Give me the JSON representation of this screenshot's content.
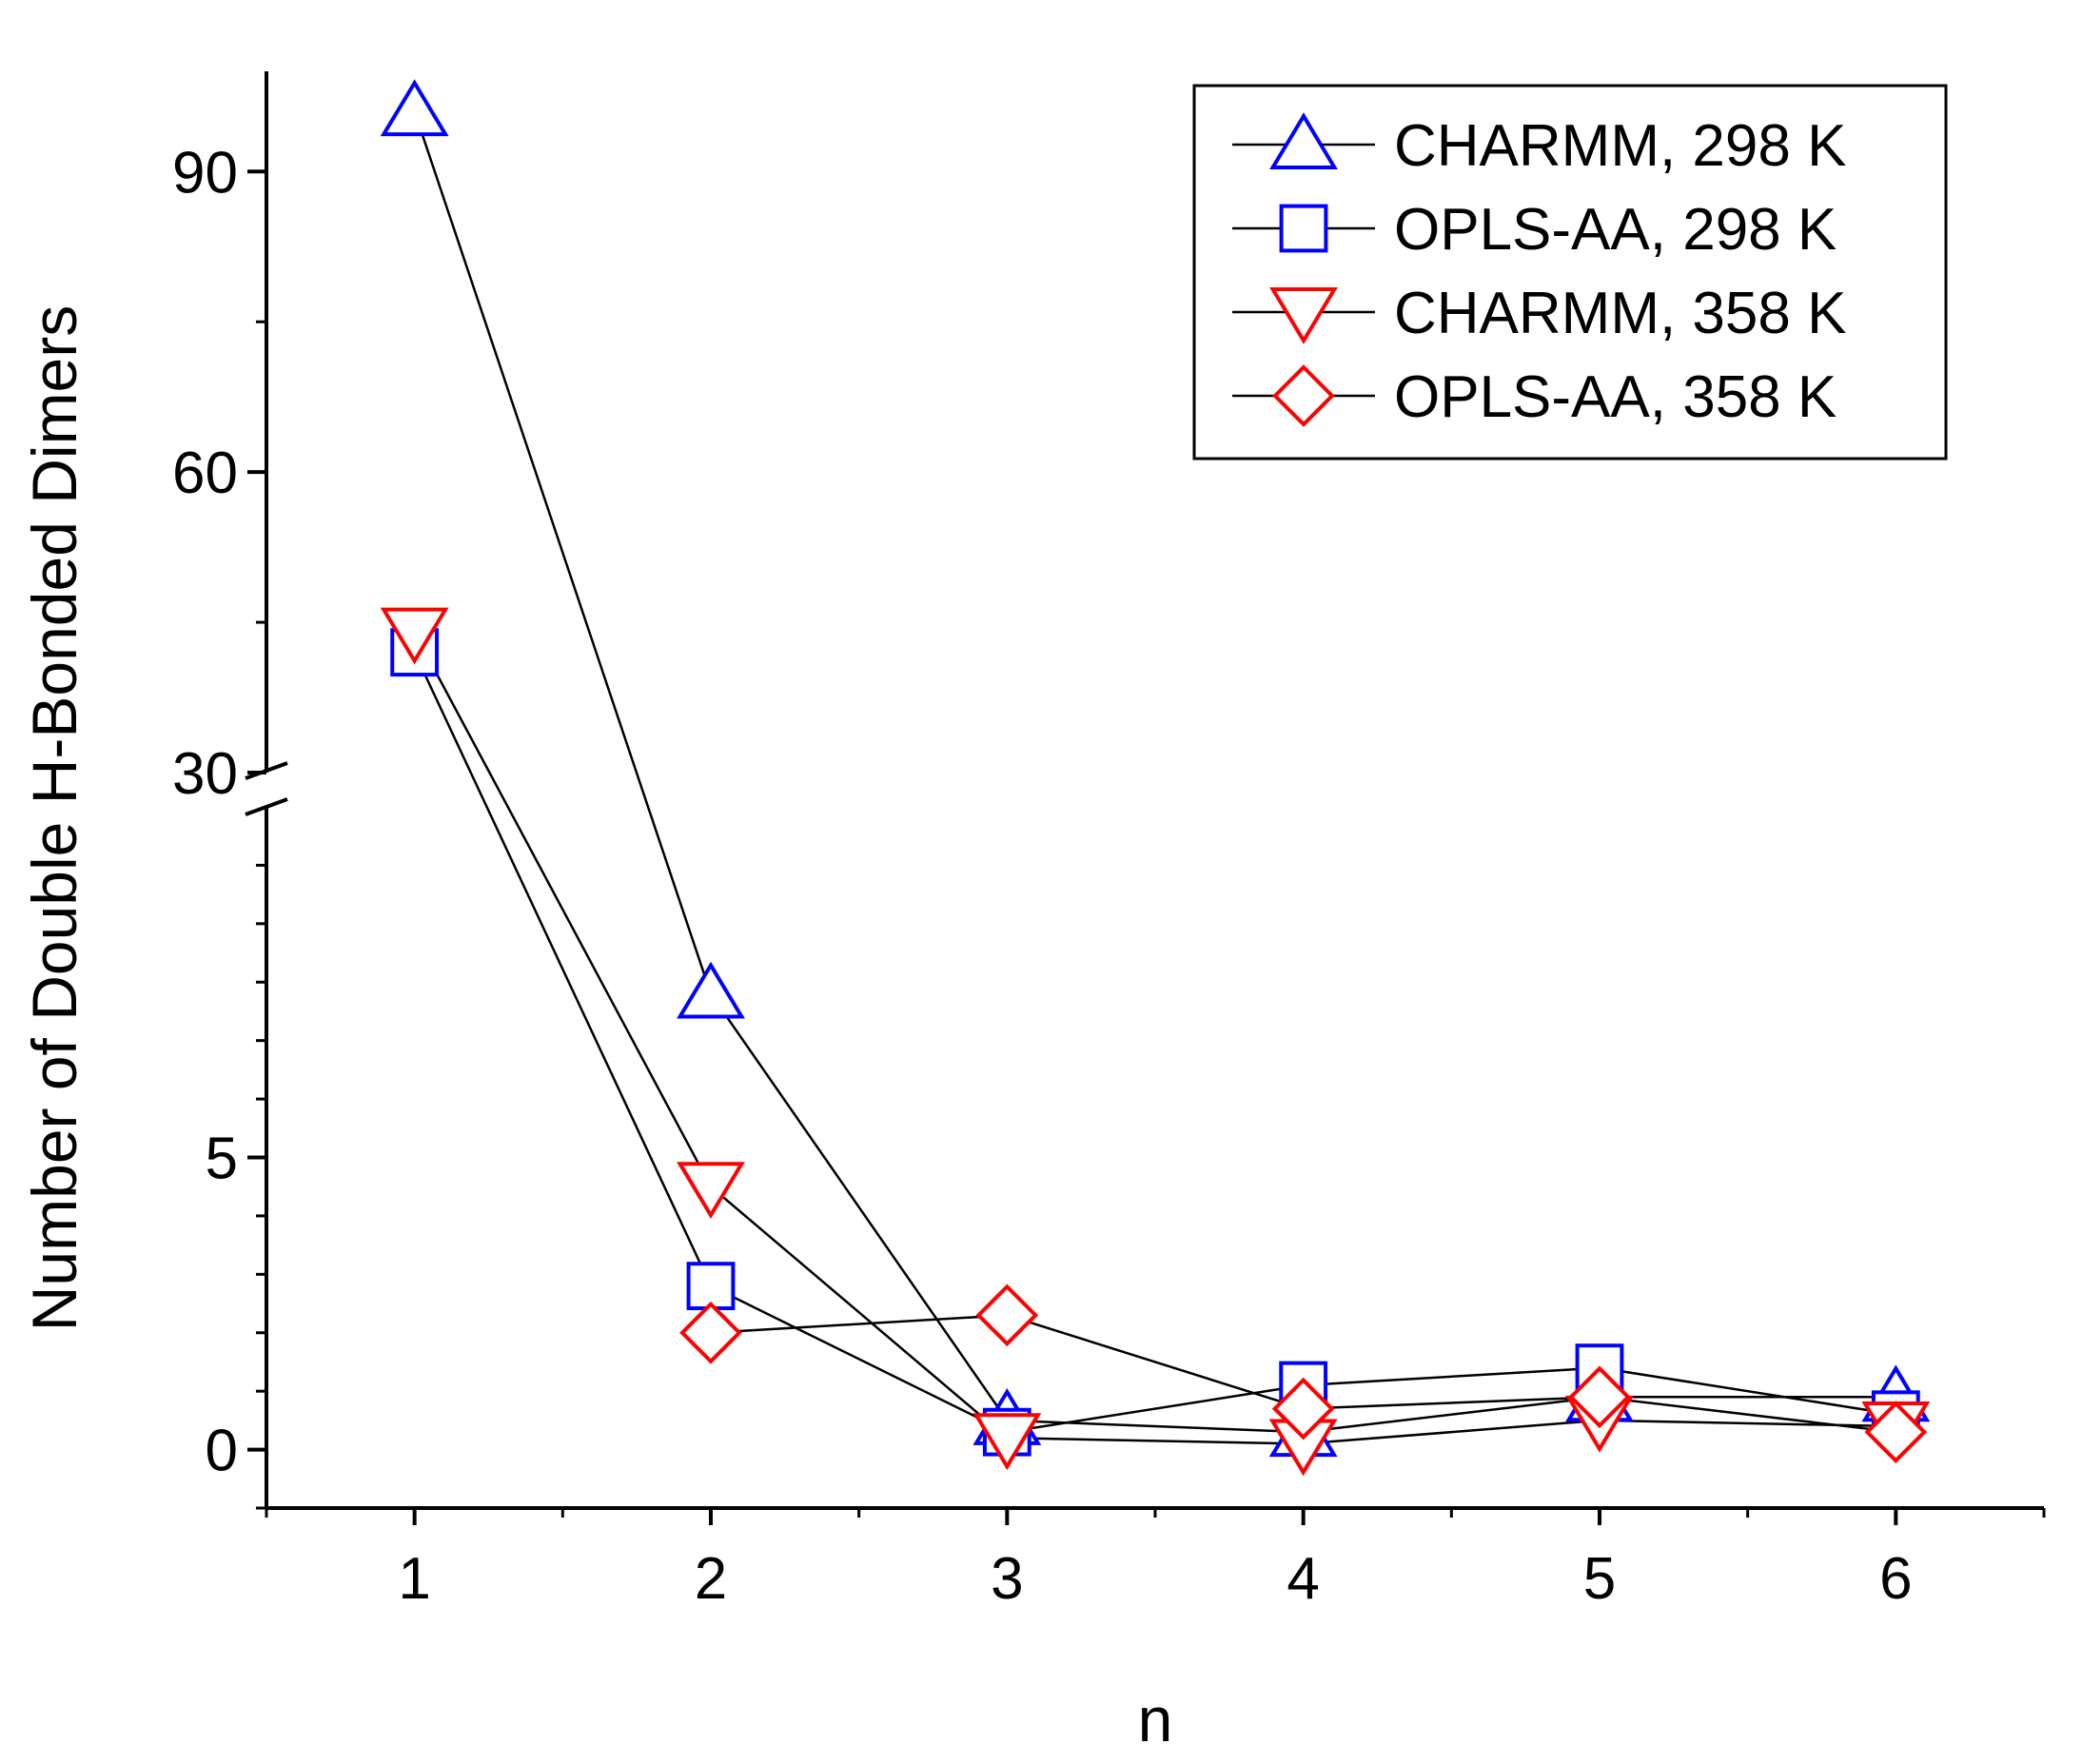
{
  "chart_data": {
    "type": "line",
    "title": "",
    "xlabel": "n",
    "ylabel": "Number of Double H-Bonded Dimers",
    "x": [
      1,
      2,
      3,
      4,
      5,
      6
    ],
    "x_ticks": [
      "1",
      "2",
      "3",
      "4",
      "5",
      "6"
    ],
    "xlim": [
      0.5,
      6.5
    ],
    "y_axis_break": true,
    "y_lower_segment": {
      "range": [
        -1,
        11
      ],
      "ticks": [
        0,
        5
      ],
      "tick_labels": [
        "0",
        "5"
      ]
    },
    "y_upper_segment": {
      "range": [
        30,
        100
      ],
      "ticks": [
        30,
        60,
        90
      ],
      "tick_labels": [
        "30",
        "60",
        "90"
      ]
    },
    "grid": false,
    "legend_position": "top-right",
    "series": [
      {
        "name": "CHARMM, 298 K",
        "marker": "triangle-up",
        "color": "#0000ff",
        "values": [
          96,
          7.8,
          0.5,
          0.3,
          0.9,
          0.9
        ]
      },
      {
        "name": "OPLS-AA, 298 K",
        "marker": "square",
        "color": "#0000ff",
        "values": [
          42,
          2.8,
          0.3,
          1.1,
          1.4,
          0.6
        ]
      },
      {
        "name": "CHARMM, 358 K",
        "marker": "triangle-down",
        "color": "#ff0000",
        "values": [
          44,
          4.5,
          0.2,
          0.1,
          0.5,
          0.4
        ]
      },
      {
        "name": "OPLS-AA, 358 K",
        "marker": "diamond",
        "color": "#ff0000",
        "values": [
          null,
          2.0,
          2.3,
          0.7,
          0.9,
          0.3
        ]
      }
    ]
  }
}
